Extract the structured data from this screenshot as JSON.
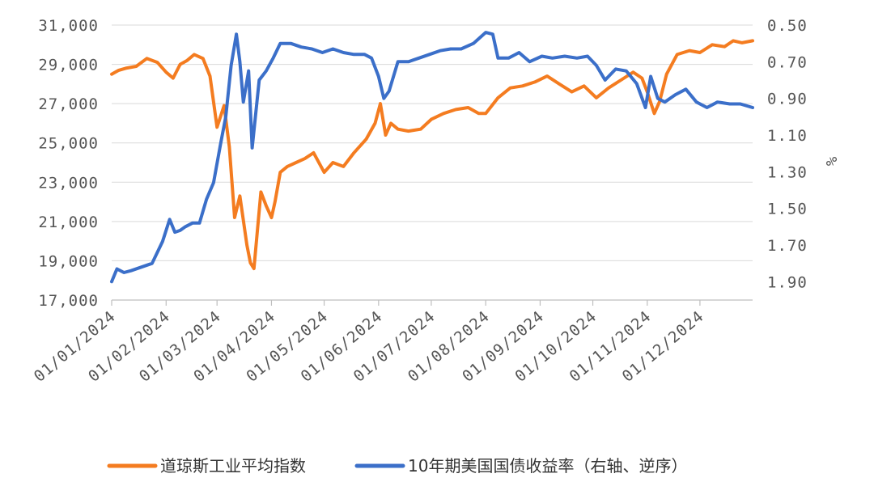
{
  "chart_data": {
    "type": "line",
    "title": "",
    "x_tick_labels": [
      "01/01/2024",
      "01/02/2024",
      "01/03/2024",
      "01/04/2024",
      "01/05/2024",
      "01/06/2024",
      "01/07/2024",
      "01/08/2024",
      "01/09/2024",
      "01/10/2024",
      "01/11/2024",
      "01/12/2024"
    ],
    "y_left": {
      "ticks": [
        "17,000",
        "19,000",
        "21,000",
        "23,000",
        "25,000",
        "27,000",
        "29,000",
        "31,000"
      ],
      "range": [
        17000,
        31000
      ]
    },
    "y_right": {
      "ticks": [
        "0.50",
        "0.70",
        "0.90",
        "1.10",
        "1.30",
        "1.50",
        "1.70",
        "1.90"
      ],
      "range": [
        0.5,
        2.0
      ],
      "inverted": true,
      "label": "%"
    },
    "grid": "horizontal",
    "legend_position": "bottom",
    "series": [
      {
        "name": "道琼斯工业平均指数",
        "axis": "left",
        "color": "#f47c20",
        "x": [
          "2024-01-01",
          "2024-01-05",
          "2024-01-09",
          "2024-01-15",
          "2024-01-21",
          "2024-01-27",
          "2024-02-01",
          "2024-02-05",
          "2024-02-09",
          "2024-02-13",
          "2024-02-17",
          "2024-02-22",
          "2024-02-26",
          "2024-03-01",
          "2024-03-05",
          "2024-03-08",
          "2024-03-11",
          "2024-03-14",
          "2024-03-18",
          "2024-03-20",
          "2024-03-22",
          "2024-03-26",
          "2024-03-29",
          "2024-04-01",
          "2024-04-03",
          "2024-04-06",
          "2024-04-10",
          "2024-04-15",
          "2024-04-20",
          "2024-04-25",
          "2024-05-01",
          "2024-05-06",
          "2024-05-12",
          "2024-05-18",
          "2024-05-25",
          "2024-05-30",
          "2024-06-02",
          "2024-06-05",
          "2024-06-08",
          "2024-06-12",
          "2024-06-18",
          "2024-06-25",
          "2024-07-01",
          "2024-07-08",
          "2024-07-15",
          "2024-07-22",
          "2024-07-28",
          "2024-08-01",
          "2024-08-08",
          "2024-08-15",
          "2024-08-22",
          "2024-08-29",
          "2024-09-05",
          "2024-09-12",
          "2024-09-19",
          "2024-09-26",
          "2024-10-03",
          "2024-10-10",
          "2024-10-17",
          "2024-10-24",
          "2024-10-29",
          "2024-11-01",
          "2024-11-05",
          "2024-11-08",
          "2024-11-12",
          "2024-11-18",
          "2024-11-25",
          "2024-12-01",
          "2024-12-08",
          "2024-12-15",
          "2024-12-20",
          "2024-12-25",
          "2024-12-31"
        ],
        "values": [
          28500,
          28700,
          28800,
          28900,
          29300,
          29100,
          28600,
          28300,
          29000,
          29200,
          29500,
          29300,
          28400,
          25800,
          26900,
          24800,
          21200,
          22300,
          19800,
          18900,
          18600,
          22500,
          21800,
          21200,
          22000,
          23500,
          23800,
          24000,
          24200,
          24500,
          23500,
          24000,
          23800,
          24500,
          25200,
          26000,
          27000,
          25400,
          26000,
          25700,
          25600,
          25700,
          26200,
          26500,
          26700,
          26800,
          26500,
          26500,
          27300,
          27800,
          27900,
          28100,
          28400,
          28000,
          27600,
          27900,
          27300,
          27800,
          28200,
          28600,
          28300,
          27600,
          26500,
          27100,
          28500,
          29500,
          29700,
          29600,
          30000,
          29900,
          30200,
          30100,
          30200
        ]
      },
      {
        "name": "10年期美国国债收益率（右轴、逆序）",
        "axis": "right",
        "color": "#3b6fc9",
        "x": [
          "2024-01-01",
          "2024-01-04",
          "2024-01-08",
          "2024-01-12",
          "2024-01-18",
          "2024-01-24",
          "2024-01-30",
          "2024-02-03",
          "2024-02-06",
          "2024-02-09",
          "2024-02-12",
          "2024-02-16",
          "2024-02-20",
          "2024-02-24",
          "2024-02-28",
          "2024-03-03",
          "2024-03-06",
          "2024-03-09",
          "2024-03-12",
          "2024-03-14",
          "2024-03-16",
          "2024-03-19",
          "2024-03-21",
          "2024-03-25",
          "2024-03-29",
          "2024-04-02",
          "2024-04-06",
          "2024-04-12",
          "2024-04-18",
          "2024-04-24",
          "2024-04-30",
          "2024-05-06",
          "2024-05-12",
          "2024-05-18",
          "2024-05-24",
          "2024-05-28",
          "2024-06-01",
          "2024-06-04",
          "2024-06-07",
          "2024-06-12",
          "2024-06-18",
          "2024-06-24",
          "2024-06-30",
          "2024-07-06",
          "2024-07-12",
          "2024-07-18",
          "2024-07-25",
          "2024-08-01",
          "2024-08-05",
          "2024-08-08",
          "2024-08-14",
          "2024-08-20",
          "2024-08-26",
          "2024-09-02",
          "2024-09-08",
          "2024-09-15",
          "2024-09-22",
          "2024-09-28",
          "2024-10-03",
          "2024-10-08",
          "2024-10-14",
          "2024-10-20",
          "2024-10-26",
          "2024-10-31",
          "2024-11-03",
          "2024-11-07",
          "2024-11-11",
          "2024-11-17",
          "2024-11-23",
          "2024-11-29",
          "2024-12-05",
          "2024-12-11",
          "2024-12-18",
          "2024-12-24",
          "2024-12-31"
        ],
        "values": [
          1.9,
          1.83,
          1.85,
          1.84,
          1.82,
          1.8,
          1.68,
          1.56,
          1.63,
          1.62,
          1.6,
          1.58,
          1.58,
          1.45,
          1.36,
          1.15,
          1.0,
          0.72,
          0.55,
          0.7,
          0.92,
          0.75,
          1.17,
          0.8,
          0.75,
          0.68,
          0.6,
          0.6,
          0.62,
          0.63,
          0.65,
          0.63,
          0.65,
          0.66,
          0.66,
          0.68,
          0.78,
          0.9,
          0.86,
          0.7,
          0.7,
          0.68,
          0.66,
          0.64,
          0.63,
          0.63,
          0.6,
          0.54,
          0.55,
          0.68,
          0.68,
          0.65,
          0.7,
          0.67,
          0.68,
          0.67,
          0.68,
          0.67,
          0.72,
          0.8,
          0.74,
          0.75,
          0.82,
          0.95,
          0.78,
          0.9,
          0.92,
          0.88,
          0.85,
          0.92,
          0.95,
          0.92,
          0.93,
          0.93,
          0.95
        ]
      }
    ]
  }
}
